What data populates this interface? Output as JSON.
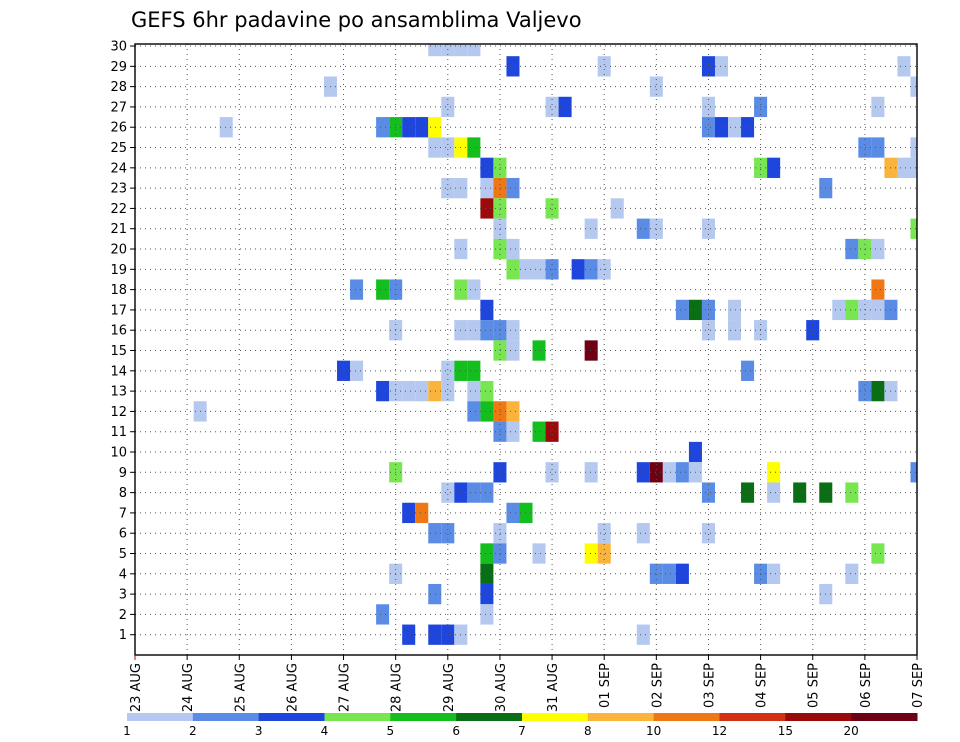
{
  "chart_data": {
    "type": "heatmap",
    "title": "GEFS 6hr padavine po ansamblima Valjevo",
    "xlabel": "",
    "ylabel": "",
    "x_ticks": [
      "23 AUG",
      "24 AUG",
      "25 AUG",
      "26 AUG",
      "27 AUG",
      "28 AUG",
      "29 AUG",
      "30 AUG",
      "31 AUG",
      "01 SEP",
      "02 SEP",
      "03 SEP",
      "04 SEP",
      "05 SEP",
      "06 SEP",
      "07 SEP"
    ],
    "y_ticks": [
      "1",
      "2",
      "3",
      "4",
      "5",
      "6",
      "7",
      "8",
      "9",
      "10",
      "11",
      "12",
      "13",
      "14",
      "15",
      "16",
      "17",
      "18",
      "19",
      "20",
      "21",
      "22",
      "23",
      "24",
      "25",
      "26",
      "27",
      "28",
      "29",
      "30"
    ],
    "xlim": [
      0,
      60
    ],
    "ylim": [
      0,
      30
    ],
    "grid": true,
    "colorbar": {
      "levels": [
        "1",
        "2",
        "3",
        "4",
        "5",
        "6",
        "7",
        "8",
        "10",
        "12",
        "15",
        "20"
      ],
      "colors": [
        "#b4c8f0",
        "#5a8ce6",
        "#1e46dc",
        "#78e650",
        "#14be1e",
        "#0a6e14",
        "#ffff00",
        "#fab43c",
        "#f07814",
        "#d23214",
        "#9b0a0a",
        "#6e0014"
      ]
    },
    "cells": [
      [
        23,
        30,
        0
      ],
      [
        24,
        30,
        0
      ],
      [
        25,
        30,
        0
      ],
      [
        26,
        30,
        0
      ],
      [
        29,
        29,
        2
      ],
      [
        36,
        29,
        0
      ],
      [
        44,
        29,
        2
      ],
      [
        45,
        29,
        0
      ],
      [
        59,
        29,
        0
      ],
      [
        15,
        28,
        0
      ],
      [
        40,
        28,
        0
      ],
      [
        60,
        28,
        0
      ],
      [
        24,
        27,
        0
      ],
      [
        32,
        27,
        0
      ],
      [
        33,
        27,
        2
      ],
      [
        44,
        27,
        0
      ],
      [
        48,
        27,
        1
      ],
      [
        57,
        27,
        0
      ],
      [
        7,
        26,
        0
      ],
      [
        19,
        26,
        1
      ],
      [
        20,
        26,
        4
      ],
      [
        21,
        26,
        2
      ],
      [
        22,
        26,
        2
      ],
      [
        23,
        26,
        6
      ],
      [
        44,
        26,
        1
      ],
      [
        45,
        26,
        2
      ],
      [
        46,
        26,
        0
      ],
      [
        47,
        26,
        2
      ],
      [
        23,
        25,
        0
      ],
      [
        24,
        25,
        0
      ],
      [
        25,
        25,
        6
      ],
      [
        26,
        25,
        4
      ],
      [
        56,
        25,
        1
      ],
      [
        57,
        25,
        1
      ],
      [
        60,
        25,
        0
      ],
      [
        27,
        24,
        2
      ],
      [
        28,
        24,
        3
      ],
      [
        48,
        24,
        3
      ],
      [
        49,
        24,
        2
      ],
      [
        58,
        24,
        7
      ],
      [
        59,
        24,
        0
      ],
      [
        60,
        24,
        0
      ],
      [
        24,
        23,
        0
      ],
      [
        25,
        23,
        0
      ],
      [
        27,
        23,
        0
      ],
      [
        28,
        23,
        8
      ],
      [
        29,
        23,
        1
      ],
      [
        53,
        23,
        1
      ],
      [
        27,
        22,
        10
      ],
      [
        28,
        22,
        3
      ],
      [
        32,
        22,
        3
      ],
      [
        37,
        22,
        0
      ],
      [
        28,
        21,
        0
      ],
      [
        35,
        21,
        0
      ],
      [
        39,
        21,
        1
      ],
      [
        40,
        21,
        0
      ],
      [
        44,
        21,
        0
      ],
      [
        60,
        21,
        3
      ],
      [
        25,
        20,
        0
      ],
      [
        28,
        20,
        3
      ],
      [
        29,
        20,
        0
      ],
      [
        55,
        20,
        1
      ],
      [
        56,
        20,
        3
      ],
      [
        57,
        20,
        0
      ],
      [
        29,
        19,
        3
      ],
      [
        30,
        19,
        0
      ],
      [
        31,
        19,
        0
      ],
      [
        32,
        19,
        1
      ],
      [
        34,
        19,
        2
      ],
      [
        35,
        19,
        1
      ],
      [
        36,
        19,
        0
      ],
      [
        17,
        18,
        1
      ],
      [
        19,
        18,
        4
      ],
      [
        20,
        18,
        1
      ],
      [
        25,
        18,
        3
      ],
      [
        26,
        18,
        0
      ],
      [
        57,
        18,
        8
      ],
      [
        27,
        17,
        2
      ],
      [
        42,
        17,
        1
      ],
      [
        43,
        17,
        5
      ],
      [
        44,
        17,
        1
      ],
      [
        46,
        17,
        0
      ],
      [
        54,
        17,
        0
      ],
      [
        55,
        17,
        3
      ],
      [
        56,
        17,
        0
      ],
      [
        57,
        17,
        0
      ],
      [
        58,
        17,
        1
      ],
      [
        20,
        16,
        0
      ],
      [
        25,
        16,
        0
      ],
      [
        26,
        16,
        0
      ],
      [
        27,
        16,
        1
      ],
      [
        28,
        16,
        1
      ],
      [
        29,
        16,
        0
      ],
      [
        44,
        16,
        0
      ],
      [
        46,
        16,
        0
      ],
      [
        48,
        16,
        0
      ],
      [
        52,
        16,
        2
      ],
      [
        28,
        15,
        3
      ],
      [
        29,
        15,
        0
      ],
      [
        31,
        15,
        4
      ],
      [
        35,
        15,
        11
      ],
      [
        16,
        14,
        2
      ],
      [
        17,
        14,
        0
      ],
      [
        24,
        14,
        0
      ],
      [
        25,
        14,
        4
      ],
      [
        26,
        14,
        4
      ],
      [
        47,
        14,
        1
      ],
      [
        19,
        13,
        2
      ],
      [
        20,
        13,
        0
      ],
      [
        21,
        13,
        0
      ],
      [
        22,
        13,
        0
      ],
      [
        23,
        13,
        7
      ],
      [
        24,
        13,
        0
      ],
      [
        26,
        13,
        0
      ],
      [
        27,
        13,
        3
      ],
      [
        56,
        13,
        1
      ],
      [
        57,
        13,
        5
      ],
      [
        58,
        13,
        0
      ],
      [
        5,
        12,
        0
      ],
      [
        26,
        12,
        1
      ],
      [
        27,
        12,
        4
      ],
      [
        28,
        12,
        8
      ],
      [
        29,
        12,
        7
      ],
      [
        28,
        11,
        1
      ],
      [
        29,
        11,
        0
      ],
      [
        31,
        11,
        4
      ],
      [
        32,
        11,
        10
      ],
      [
        43,
        10,
        2
      ],
      [
        20,
        9,
        3
      ],
      [
        28,
        9,
        2
      ],
      [
        32,
        9,
        0
      ],
      [
        35,
        9,
        0
      ],
      [
        39,
        9,
        2
      ],
      [
        40,
        9,
        11
      ],
      [
        41,
        9,
        0
      ],
      [
        42,
        9,
        1
      ],
      [
        43,
        9,
        0
      ],
      [
        49,
        9,
        6
      ],
      [
        60,
        9,
        1
      ],
      [
        24,
        8,
        0
      ],
      [
        25,
        8,
        2
      ],
      [
        26,
        8,
        1
      ],
      [
        27,
        8,
        1
      ],
      [
        44,
        8,
        1
      ],
      [
        47,
        8,
        5
      ],
      [
        49,
        8,
        0
      ],
      [
        51,
        8,
        5
      ],
      [
        53,
        8,
        5
      ],
      [
        55,
        8,
        3
      ],
      [
        21,
        7,
        2
      ],
      [
        22,
        7,
        8
      ],
      [
        29,
        7,
        1
      ],
      [
        30,
        7,
        4
      ],
      [
        23,
        6,
        1
      ],
      [
        24,
        6,
        1
      ],
      [
        28,
        6,
        0
      ],
      [
        36,
        6,
        0
      ],
      [
        39,
        6,
        0
      ],
      [
        44,
        6,
        0
      ],
      [
        27,
        5,
        4
      ],
      [
        28,
        5,
        1
      ],
      [
        31,
        5,
        0
      ],
      [
        35,
        5,
        6
      ],
      [
        36,
        5,
        7
      ],
      [
        57,
        5,
        3
      ],
      [
        20,
        4,
        0
      ],
      [
        27,
        4,
        5
      ],
      [
        40,
        4,
        1
      ],
      [
        41,
        4,
        1
      ],
      [
        42,
        4,
        2
      ],
      [
        48,
        4,
        1
      ],
      [
        49,
        4,
        0
      ],
      [
        55,
        4,
        0
      ],
      [
        23,
        3,
        1
      ],
      [
        27,
        3,
        2
      ],
      [
        53,
        3,
        0
      ],
      [
        19,
        2,
        1
      ],
      [
        27,
        2,
        0
      ],
      [
        21,
        1,
        2
      ],
      [
        23,
        1,
        2
      ],
      [
        24,
        1,
        2
      ],
      [
        25,
        1,
        0
      ],
      [
        39,
        1,
        0
      ]
    ]
  }
}
